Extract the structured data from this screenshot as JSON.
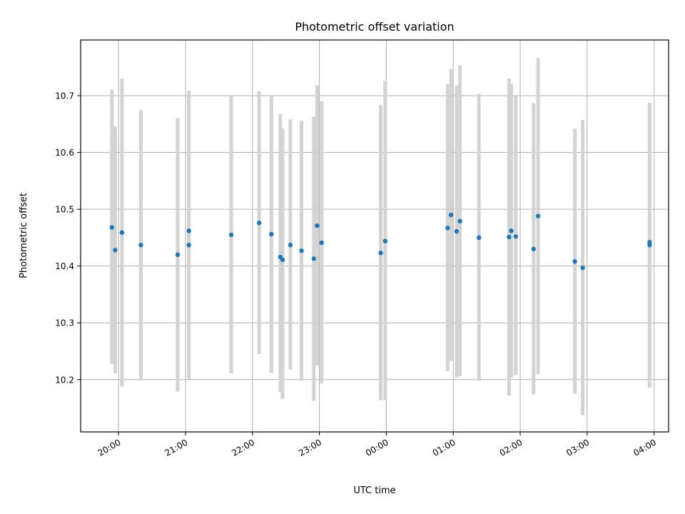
{
  "chart_data": {
    "type": "scatter",
    "title": "Photometric offset variation",
    "xlabel": "UTC time",
    "ylabel": "Photometric offset",
    "xlim": [
      "2024-01-01 19:26",
      "2024-01-02 04:13"
    ],
    "ylim": [
      10.108,
      10.798
    ],
    "grid": true,
    "x_tick_labels": [
      "20:00",
      "21:00",
      "22:00",
      "23:00",
      "00:00",
      "01:00",
      "02:00",
      "03:00",
      "04:00"
    ],
    "x_ticks": [
      "2024-01-01 20:00",
      "2024-01-01 21:00",
      "2024-01-01 22:00",
      "2024-01-01 23:00",
      "2024-01-02 00:00",
      "2024-01-02 01:00",
      "2024-01-02 02:00",
      "2024-01-02 03:00",
      "2024-01-02 04:00"
    ],
    "y_ticks": [
      10.2,
      10.3,
      10.4,
      10.5,
      10.6,
      10.7
    ],
    "y_tick_labels": [
      "10.2",
      "10.3",
      "10.4",
      "10.5",
      "10.6",
      "10.7"
    ],
    "marker_color": "#1f77b4",
    "errorbar_color": "#d3d3d3",
    "points": [
      {
        "t": "2024-01-01 19:54",
        "y": 10.468,
        "lo": 10.228,
        "hi": 10.711
      },
      {
        "t": "2024-01-01 19:57",
        "y": 10.428,
        "lo": 10.211,
        "hi": 10.646
      },
      {
        "t": "2024-01-01 20:03",
        "y": 10.459,
        "lo": 10.188,
        "hi": 10.73
      },
      {
        "t": "2024-01-01 20:20",
        "y": 10.437,
        "lo": 10.199,
        "hi": 10.675
      },
      {
        "t": "2024-01-01 20:53",
        "y": 10.42,
        "lo": 10.179,
        "hi": 10.661
      },
      {
        "t": "2024-01-01 21:03",
        "y": 10.437,
        "lo": 10.201,
        "hi": 10.7
      },
      {
        "t": "2024-01-01 21:03",
        "y": 10.462,
        "lo": 10.218,
        "hi": 10.709
      },
      {
        "t": "2024-01-01 21:41",
        "y": 10.455,
        "lo": 10.211,
        "hi": 10.699
      },
      {
        "t": "2024-01-01 22:06",
        "y": 10.476,
        "lo": 10.245,
        "hi": 10.708
      },
      {
        "t": "2024-01-01 22:17",
        "y": 10.456,
        "lo": 10.212,
        "hi": 10.7
      },
      {
        "t": "2024-01-01 22:25",
        "y": 10.416,
        "lo": 10.178,
        "hi": 10.668
      },
      {
        "t": "2024-01-01 22:27",
        "y": 10.411,
        "lo": 10.166,
        "hi": 10.642
      },
      {
        "t": "2024-01-01 22:34",
        "y": 10.437,
        "lo": 10.218,
        "hi": 10.658
      },
      {
        "t": "2024-01-01 22:44",
        "y": 10.427,
        "lo": 10.198,
        "hi": 10.656
      },
      {
        "t": "2024-01-01 22:55",
        "y": 10.413,
        "lo": 10.163,
        "hi": 10.663
      },
      {
        "t": "2024-01-01 22:58",
        "y": 10.471,
        "lo": 10.225,
        "hi": 10.718
      },
      {
        "t": "2024-01-01 23:02",
        "y": 10.441,
        "lo": 10.193,
        "hi": 10.69
      },
      {
        "t": "2024-01-01 23:55",
        "y": 10.423,
        "lo": 10.164,
        "hi": 10.684
      },
      {
        "t": "2024-01-01 23:59",
        "y": 10.444,
        "lo": 10.164,
        "hi": 10.726
      },
      {
        "t": "2024-01-02 00:55",
        "y": 10.467,
        "lo": 10.215,
        "hi": 10.72
      },
      {
        "t": "2024-01-02 00:58",
        "y": 10.49,
        "lo": 10.233,
        "hi": 10.747
      },
      {
        "t": "2024-01-02 01:03",
        "y": 10.461,
        "lo": 10.204,
        "hi": 10.718
      },
      {
        "t": "2024-01-02 01:06",
        "y": 10.479,
        "lo": 10.206,
        "hi": 10.753
      },
      {
        "t": "2024-01-02 01:23",
        "y": 10.45,
        "lo": 10.198,
        "hi": 10.703
      },
      {
        "t": "2024-01-02 01:50",
        "y": 10.451,
        "lo": 10.172,
        "hi": 10.73
      },
      {
        "t": "2024-01-02 01:52",
        "y": 10.462,
        "lo": 10.204,
        "hi": 10.721
      },
      {
        "t": "2024-01-02 01:56",
        "y": 10.452,
        "lo": 10.208,
        "hi": 10.7
      },
      {
        "t": "2024-01-02 02:12",
        "y": 10.43,
        "lo": 10.174,
        "hi": 10.687
      },
      {
        "t": "2024-01-02 02:16",
        "y": 10.488,
        "lo": 10.21,
        "hi": 10.766
      },
      {
        "t": "2024-01-02 02:49",
        "y": 10.408,
        "lo": 10.175,
        "hi": 10.642
      },
      {
        "t": "2024-01-02 02:56",
        "y": 10.397,
        "lo": 10.137,
        "hi": 10.657
      },
      {
        "t": "2024-01-02 03:56",
        "y": 10.437,
        "lo": 10.186,
        "hi": 10.688
      },
      {
        "t": "2024-01-02 03:56",
        "y": 10.442,
        "lo": 10.198,
        "hi": 10.688
      }
    ]
  }
}
